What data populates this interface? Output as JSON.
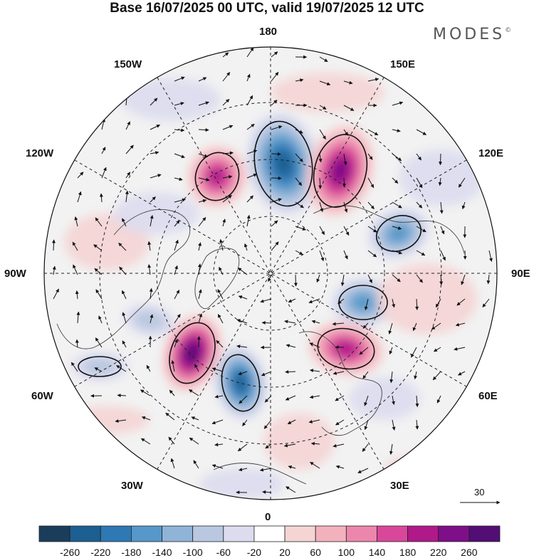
{
  "title": "Base 16/07/2025 00 UTC, valid 19/07/2025 12 UTC",
  "brand": {
    "name": "MODES",
    "mark": "©"
  },
  "longitude_labels": {
    "top": "180",
    "bottom": "0",
    "left": "90W",
    "right": "90E",
    "upper_left": "150W",
    "upper_right": "150E",
    "mid_upper_left": "120W",
    "mid_upper_right": "120E",
    "mid_lower_left": "60W",
    "mid_lower_right": "60E",
    "lower_left": "30W",
    "lower_right": "30E"
  },
  "reference_vector": {
    "label": "30"
  },
  "colorbar": {
    "levels": [
      "-260",
      "-220",
      "-180",
      "-140",
      "-100",
      "-60",
      "-20",
      "20",
      "60",
      "100",
      "140",
      "180",
      "220",
      "260"
    ],
    "colors": [
      "#1a3d5c",
      "#1c5f91",
      "#2e78b4",
      "#5598c9",
      "#8fb4d8",
      "#b9c8e0",
      "#dcdcef",
      "#ffffff",
      "#f5d4d4",
      "#f2b1bd",
      "#ec86ac",
      "#d9479a",
      "#b0198a",
      "#7e0f88",
      "#520e74"
    ]
  },
  "anomaly_centers": [
    {
      "name": "low-180-sector",
      "sign": "negative",
      "level": 220
    },
    {
      "name": "high-150E-sector",
      "sign": "positive",
      "level": 220
    },
    {
      "name": "high-150W-sector",
      "sign": "positive",
      "level": 180
    },
    {
      "name": "low-120E-sector",
      "sign": "negative",
      "level": 140
    },
    {
      "name": "low-70E-sector",
      "sign": "negative",
      "level": 140
    },
    {
      "name": "high-40E-sector",
      "sign": "positive",
      "level": 180
    },
    {
      "name": "high-50W-sector",
      "sign": "positive",
      "level": 260
    },
    {
      "name": "low-25W-sector",
      "sign": "negative",
      "level": 220
    },
    {
      "name": "low-70W-sector",
      "sign": "negative",
      "level": 60
    },
    {
      "name": "low-80W-sector",
      "sign": "negative",
      "level": 60
    }
  ]
}
